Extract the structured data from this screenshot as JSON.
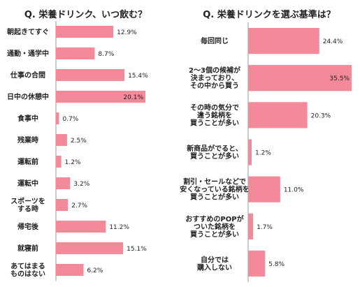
{
  "chart_data": [
    {
      "type": "bar",
      "orientation": "horizontal",
      "title": "Q. 栄養ドリンク、いつ飲む？",
      "categories": [
        "朝起きてすぐ",
        "通勤・通学中",
        "仕事の合間",
        "日中の休憩中",
        "食事中",
        "残業時",
        "運転前",
        "運転中",
        "スポーツを|する時",
        "帰宅後",
        "就寝前",
        "あてはまる|ものはない"
      ],
      "values": [
        12.9,
        8.7,
        15.4,
        20.1,
        0.7,
        2.5,
        1.2,
        3.2,
        2.7,
        11.2,
        15.1,
        6.2
      ],
      "value_labels": [
        "12.9%",
        "8.7%",
        "15.4%",
        "20.1%",
        "0.7%",
        "2.5%",
        "1.2%",
        "3.2%",
        "2.7%",
        "11.2%",
        "15.1%",
        "6.2%"
      ],
      "unit": "%",
      "xlim": [
        0,
        20.1
      ],
      "bar_color": "#f4899a",
      "grid": false,
      "legend": "none"
    },
    {
      "type": "bar",
      "orientation": "horizontal",
      "title": "Q. 栄養ドリンクを選ぶ基準は？",
      "categories": [
        "毎回同じ",
        "2〜3個の候補が|決まっており、|その中から買う",
        "その時の気分で|違う銘柄を|買うことが多い",
        "新商品がでると、|買うことが多い",
        "割引・セールなどで|安くなっている銘柄を|買うことが多い",
        "おすすめのPOPが|ついた銘柄を|買うことが多い",
        "自分では|購入しない"
      ],
      "values": [
        24.4,
        35.5,
        20.3,
        1.2,
        11.0,
        1.7,
        5.8
      ],
      "value_labels": [
        "24.4%",
        "35.5%",
        "20.3%",
        "1.2%",
        "11.0%",
        "1.7%",
        "5.8%"
      ],
      "unit": "%",
      "xlim": [
        0,
        35.5
      ],
      "bar_color": "#f4899a",
      "grid": false,
      "legend": "none"
    }
  ]
}
